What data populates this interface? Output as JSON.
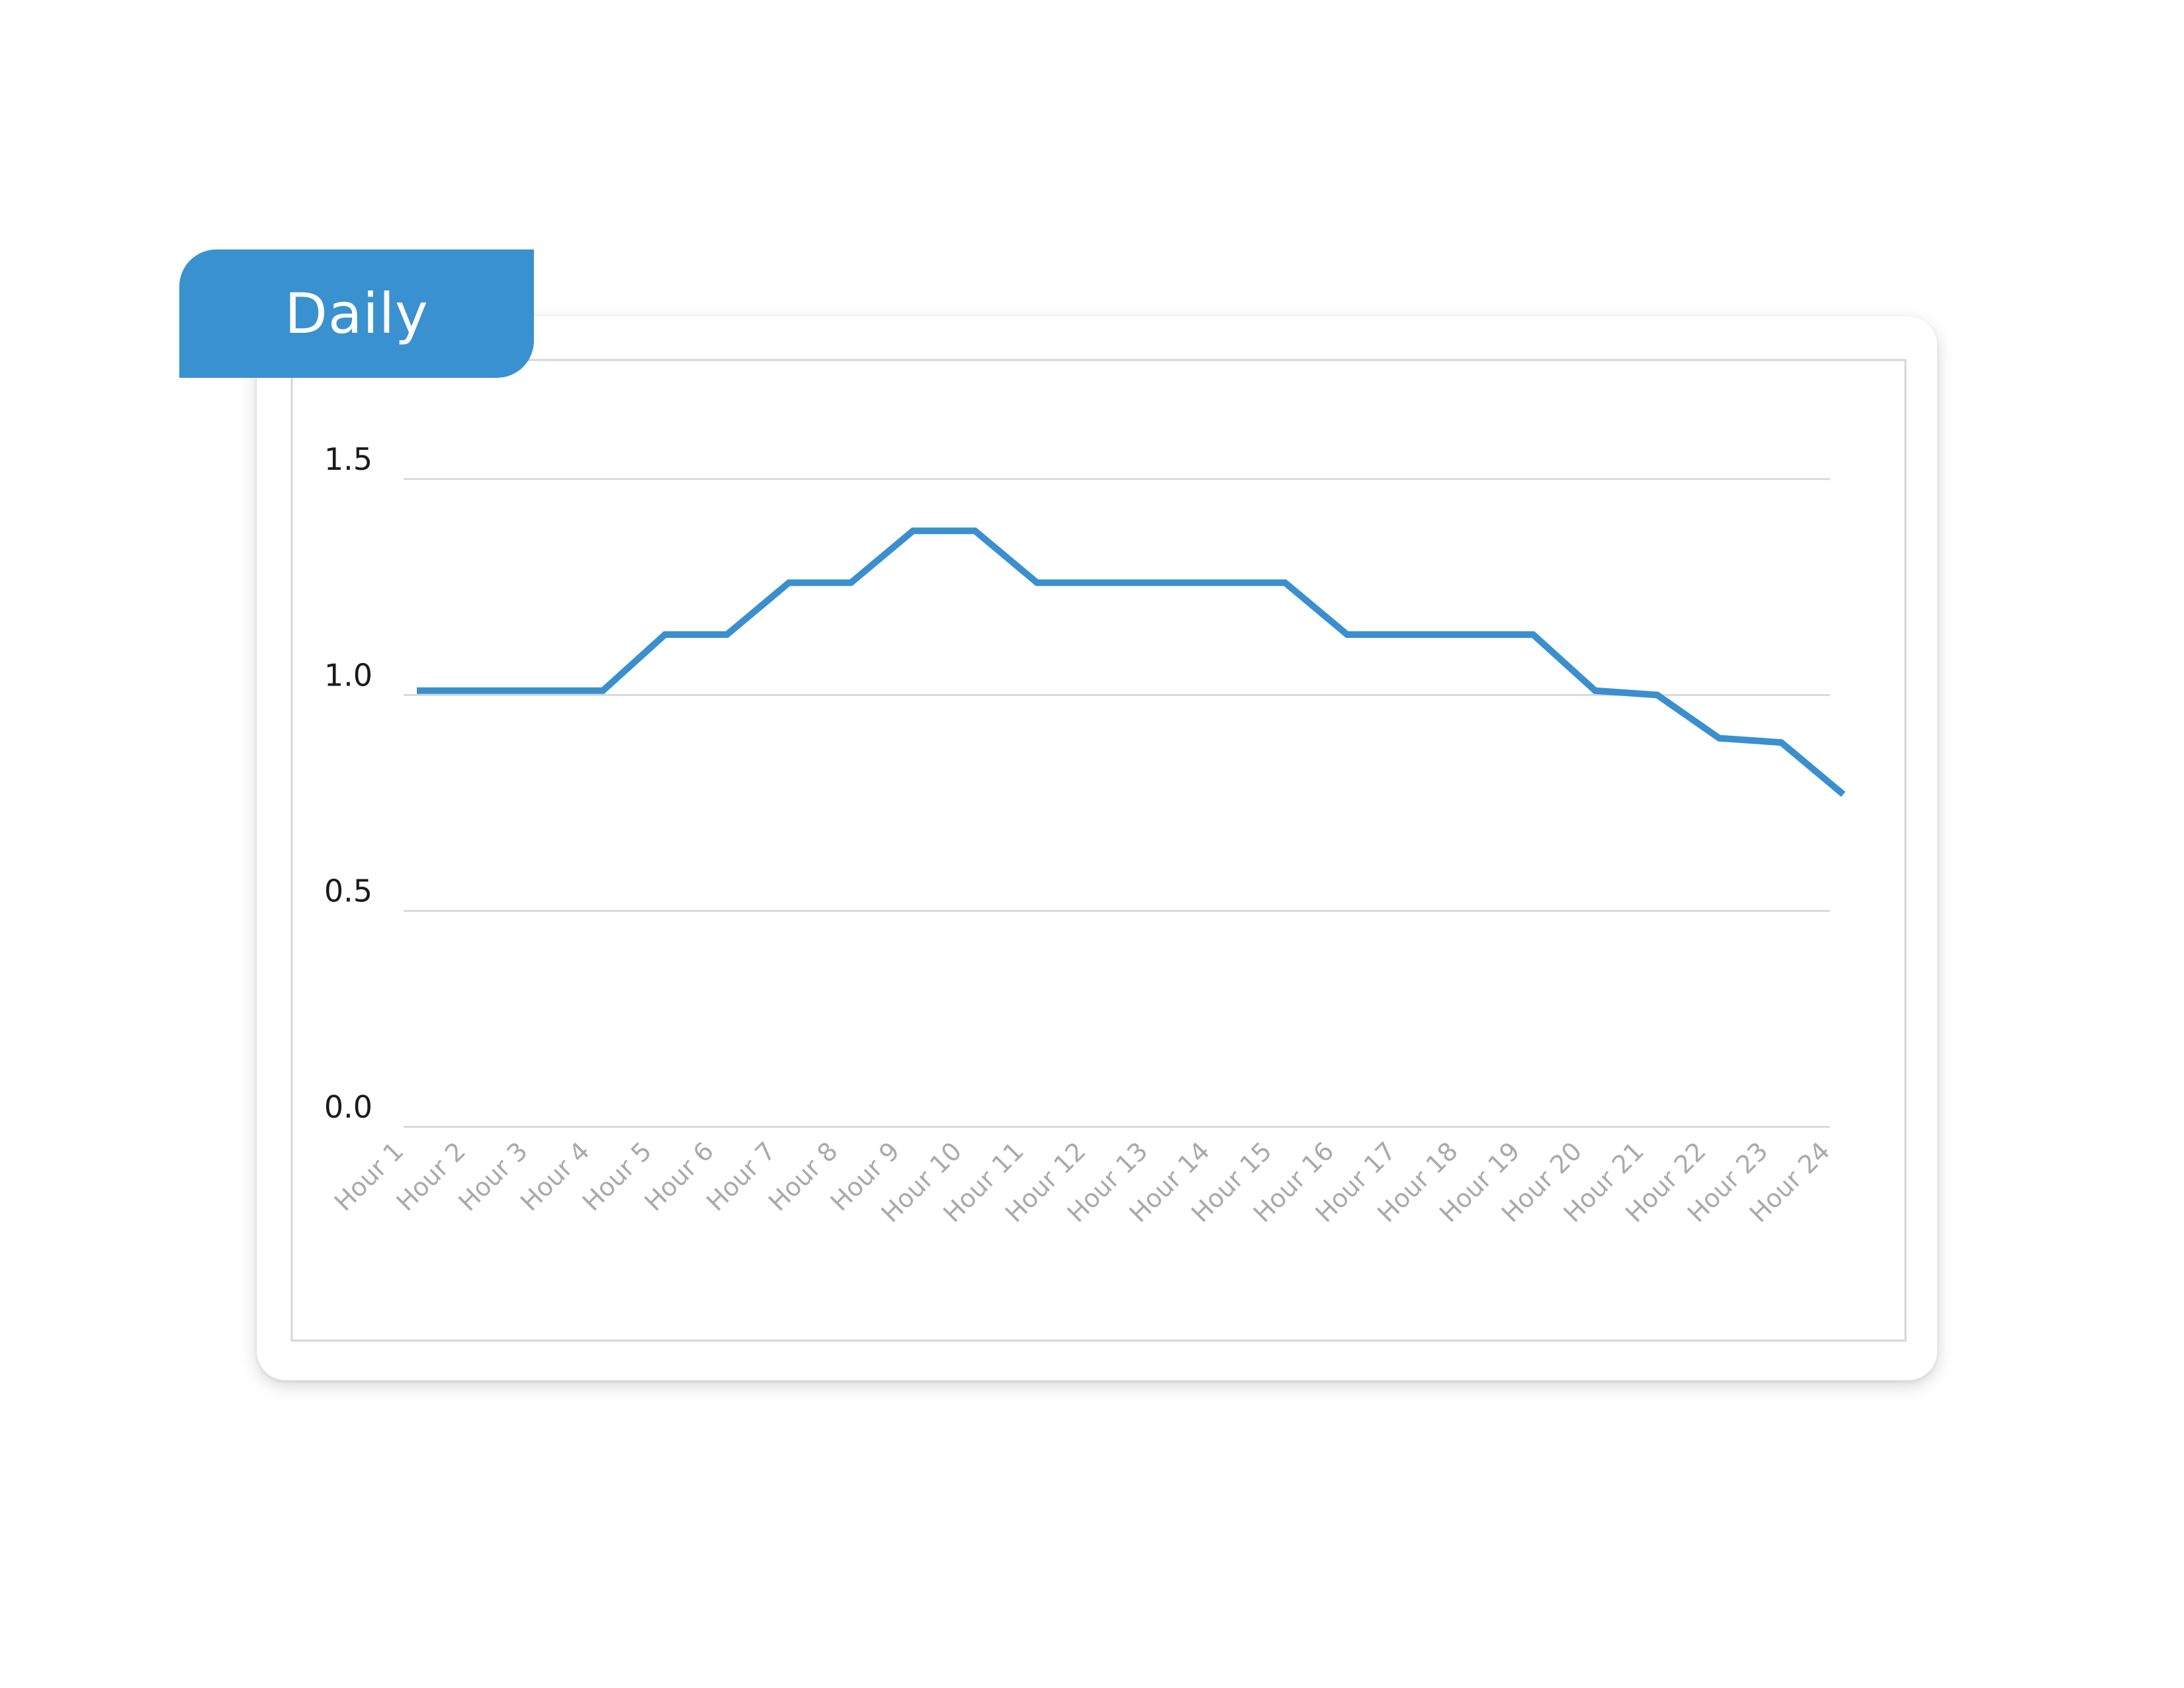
{
  "tab": {
    "label": "Daily"
  },
  "colors": {
    "accent": "#3a91d0",
    "line": "#3a8fcf",
    "grid": "#d3d3d3",
    "tick_x": "#a9a9a9",
    "tick_y": "#1a1a1a"
  },
  "chart_data": {
    "type": "line",
    "title": "",
    "xlabel": "",
    "ylabel": "",
    "ylim": [
      0,
      1.5
    ],
    "y_ticks": [
      "0.0",
      "0.5",
      "1.0",
      "1.5"
    ],
    "grid": true,
    "legend": "none",
    "categories": [
      "Hour 1",
      "Hour 2",
      "Hour 3",
      "Hour 4",
      "Hour 5",
      "Hour 6",
      "Hour 7",
      "Hour 8",
      "Hour 9",
      "Hour 10",
      "Hour 11",
      "Hour 12",
      "Hour 13",
      "Hour 14",
      "Hour 15",
      "Hour 16",
      "Hour 17",
      "Hour 18",
      "Hour 19",
      "Hour 20",
      "Hour 21",
      "Hour 22",
      "Hour 23",
      "Hour 24"
    ],
    "series": [
      {
        "values": [
          1.01,
          1.01,
          1.01,
          1.01,
          1.14,
          1.14,
          1.26,
          1.26,
          1.38,
          1.38,
          1.26,
          1.26,
          1.26,
          1.26,
          1.26,
          1.14,
          1.14,
          1.14,
          1.14,
          1.01,
          1.0,
          0.9,
          0.89,
          0.77
        ]
      }
    ]
  }
}
